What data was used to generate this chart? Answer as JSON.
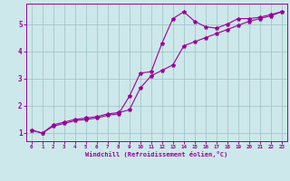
{
  "line1_x": [
    0,
    1,
    2,
    3,
    4,
    5,
    6,
    7,
    8,
    9,
    10,
    11,
    12,
    13,
    14,
    15,
    16,
    17,
    18,
    19,
    20,
    21,
    22,
    23
  ],
  "line1_y": [
    1.1,
    1.0,
    1.25,
    1.35,
    1.45,
    1.5,
    1.55,
    1.65,
    1.7,
    2.35,
    3.2,
    3.25,
    4.3,
    5.2,
    5.45,
    5.1,
    4.9,
    4.85,
    5.0,
    5.2,
    5.2,
    5.25,
    5.35,
    5.45
  ],
  "line2_x": [
    0,
    1,
    2,
    3,
    4,
    5,
    6,
    7,
    8,
    9,
    10,
    11,
    12,
    13,
    14,
    15,
    16,
    17,
    18,
    19,
    20,
    21,
    22,
    23
  ],
  "line2_y": [
    1.1,
    1.0,
    1.3,
    1.4,
    1.5,
    1.55,
    1.6,
    1.7,
    1.75,
    1.85,
    2.65,
    3.1,
    3.3,
    3.5,
    4.2,
    4.35,
    4.5,
    4.65,
    4.8,
    4.95,
    5.1,
    5.2,
    5.3,
    5.45
  ],
  "line_color": "#990099",
  "marker": "*",
  "background_color": "#cde8ea",
  "grid_color": "#9bbfc2",
  "axis_color": "#990099",
  "xlabel": "Windchill (Refroidissement éolien,°C)",
  "ylim": [
    0.7,
    5.75
  ],
  "xlim": [
    -0.5,
    23.5
  ],
  "yticks": [
    1,
    2,
    3,
    4,
    5
  ],
  "xticks": [
    0,
    1,
    2,
    3,
    4,
    5,
    6,
    7,
    8,
    9,
    10,
    11,
    12,
    13,
    14,
    15,
    16,
    17,
    18,
    19,
    20,
    21,
    22,
    23
  ],
  "figsize": [
    3.2,
    2.0
  ],
  "dpi": 100
}
